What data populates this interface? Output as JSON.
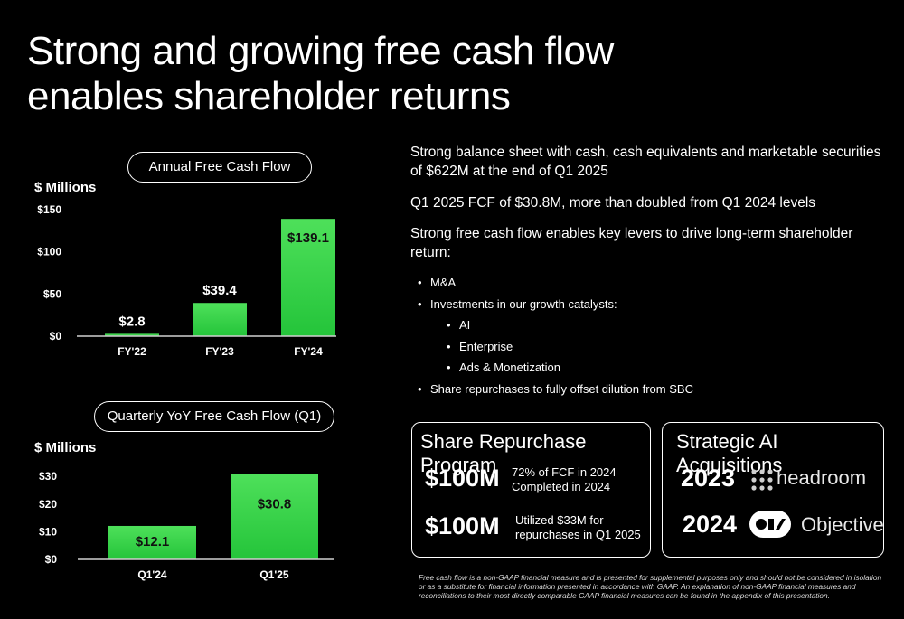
{
  "title_line1": "Strong and growing free cash flow",
  "title_line2": "enables shareholder returns",
  "chart_data": [
    {
      "type": "bar",
      "title": "Annual Free Cash Flow",
      "ylabel": "$ Millions",
      "categories": [
        "FY'22",
        "FY'23",
        "FY'24"
      ],
      "values": [
        2.8,
        39.4,
        139.1
      ],
      "value_labels": [
        "$2.8",
        "$39.4",
        "$139.1"
      ],
      "yticks": [
        0,
        50,
        100,
        150
      ],
      "ytick_labels": [
        "$0",
        "$50",
        "$100",
        "$150"
      ],
      "ylim": [
        0,
        150
      ]
    },
    {
      "type": "bar",
      "title": "Quarterly YoY Free Cash Flow (Q1)",
      "ylabel": "$ Millions",
      "categories": [
        "Q1'24",
        "Q1'25"
      ],
      "values": [
        12.1,
        30.8
      ],
      "value_labels": [
        "$12.1",
        "$30.8"
      ],
      "yticks": [
        0,
        10,
        20,
        30
      ],
      "ytick_labels": [
        "$0",
        "$10",
        "$20",
        "$30"
      ],
      "ylim": [
        0,
        33
      ]
    }
  ],
  "right": {
    "p1": "Strong balance sheet with cash, cash equivalents and marketable securities of $622M at the end of Q1 2025",
    "p2": "Q1 2025 FCF of $30.8M, more than doubled from Q1 2024 levels",
    "p3": "Strong free cash flow enables key levers to drive long-term shareholder return:",
    "bullets": {
      "b1": "M&A",
      "b2": "Investments in our growth catalysts:",
      "s1": "AI",
      "s2": "Enterprise",
      "s3": "Ads & Monetization",
      "b3": "Share repurchases to fully offset dilution from SBC"
    }
  },
  "repurchase": {
    "title": "Share Repurchase Program",
    "amount1": "$100M",
    "desc1_line1": "72% of FCF in 2024",
    "desc1_line2": "Completed in 2024",
    "amount2": "$100M",
    "desc2_line1": "Utilized $33M for",
    "desc2_line2": "repurchases in Q1 2025"
  },
  "acquisitions": {
    "title": "Strategic AI Acquisitions",
    "year1": "2023",
    "name1": "headroom",
    "year2": "2024",
    "name2": "Objective"
  },
  "footnote": "Free cash flow is a non-GAAP financial measure and is presented for supplemental purposes only and should not be considered in isolation or as a substitute for financial information presented in accordance with GAAP. An explanation of non-GAAP financial measures and reconciliations to their most directly comparable GAAP financial measures can be found in the appendix of this presentation."
}
